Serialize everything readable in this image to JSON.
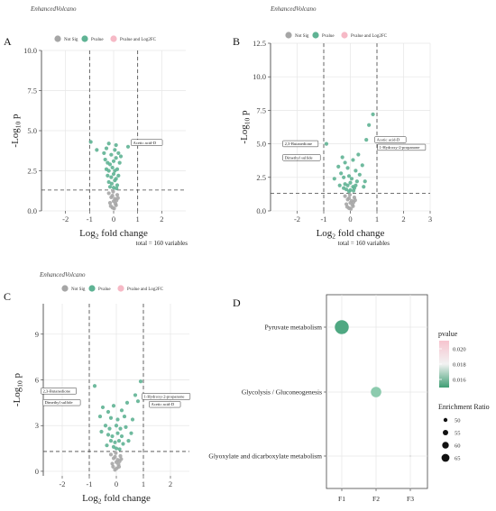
{
  "chart_data": [
    {
      "panel": "A",
      "type": "scatter",
      "title": "EnhancedVolcano",
      "xlabel": "Log2 fold change",
      "ylabel": "-Log10 p",
      "xlim": [
        -3,
        3
      ],
      "ylim": [
        0,
        10
      ],
      "xticks": [
        "-2",
        "-1",
        "0",
        "1",
        "2"
      ],
      "yticks": [
        "0.0",
        "2.5",
        "5.0",
        "7.5",
        "10.0"
      ],
      "thresholds": {
        "x": [
          -1,
          1
        ],
        "y": 1.3
      },
      "legend": [
        "Not Sig",
        "Pvalue",
        "Pvalue and Log2FC"
      ],
      "footer": "total = 160 variables",
      "annotations": [
        {
          "text": "Acetic acid-D",
          "x": 0.6,
          "y": 4.0
        }
      ],
      "series": [
        {
          "name": "Not Sig",
          "color": "#a6a6a6",
          "points": [
            [
              -0.05,
              0.2
            ],
            [
              0.1,
              0.35
            ],
            [
              -0.15,
              0.5
            ],
            [
              0.0,
              0.6
            ],
            [
              0.05,
              0.75
            ],
            [
              -0.1,
              0.85
            ],
            [
              0.15,
              1.0
            ],
            [
              -0.2,
              1.1
            ],
            [
              0.02,
              0.15
            ],
            [
              0.08,
              0.45
            ],
            [
              -0.05,
              0.95
            ],
            [
              0.12,
              0.65
            ],
            [
              -0.12,
              0.3
            ],
            [
              0.18,
              0.8
            ],
            [
              -0.02,
              1.2
            ]
          ]
        },
        {
          "name": "Pvalue",
          "color": "#5fb394",
          "points": [
            [
              -0.95,
              4.3
            ],
            [
              -0.7,
              3.8
            ],
            [
              -0.4,
              3.6
            ],
            [
              -0.3,
              3.9
            ],
            [
              -0.2,
              4.2
            ],
            [
              -0.1,
              3.5
            ],
            [
              0.05,
              3.8
            ],
            [
              0.1,
              4.1
            ],
            [
              0.2,
              3.6
            ],
            [
              -0.35,
              3.2
            ],
            [
              -0.25,
              3.0
            ],
            [
              -0.15,
              2.9
            ],
            [
              0.0,
              3.1
            ],
            [
              0.1,
              3.3
            ],
            [
              0.25,
              3.0
            ],
            [
              -0.3,
              2.6
            ],
            [
              -0.2,
              2.5
            ],
            [
              -0.05,
              2.7
            ],
            [
              0.05,
              2.5
            ],
            [
              0.15,
              2.6
            ],
            [
              -0.25,
              2.2
            ],
            [
              -0.1,
              2.1
            ],
            [
              0.0,
              2.3
            ],
            [
              0.1,
              2.0
            ],
            [
              0.2,
              2.2
            ],
            [
              -0.2,
              1.8
            ],
            [
              -0.08,
              1.7
            ],
            [
              0.05,
              1.9
            ],
            [
              0.15,
              1.6
            ],
            [
              -0.15,
              1.5
            ],
            [
              0.0,
              1.45
            ],
            [
              0.12,
              1.4
            ],
            [
              0.6,
              4.0
            ],
            [
              0.3,
              3.4
            ]
          ]
        }
      ]
    },
    {
      "panel": "B",
      "type": "scatter",
      "title": "EnhancedVolcano",
      "xlabel": "Log2 fold change",
      "ylabel": "-Log10 p",
      "xlim": [
        -3,
        3
      ],
      "ylim": [
        0,
        12.5
      ],
      "xticks": [
        "-2",
        "-1",
        "0",
        "1",
        "2",
        "3"
      ],
      "yticks": [
        "0.0",
        "2.5",
        "5.0",
        "7.5",
        "10.0",
        "12.5"
      ],
      "thresholds": {
        "x": [
          -1,
          1
        ],
        "y": 1.3
      },
      "legend": [
        "Not Sig",
        "Pvalue",
        "Pvalue and Log2FC"
      ],
      "footer": "total = 160 variables",
      "annotations": [
        {
          "text": "2,3-Butanedione",
          "x": -1.2,
          "y": 4.7
        },
        {
          "text": "Dimethyl sulfide",
          "x": -1.2,
          "y": 3.6
        },
        {
          "text": "Acetic acid-D",
          "x": 0.8,
          "y": 5.0
        },
        {
          "text": "1-Hydroxy-2-propanone",
          "x": 0.9,
          "y": 4.5
        }
      ],
      "series": [
        {
          "name": "Not Sig",
          "color": "#a6a6a6",
          "points": [
            [
              -0.05,
              0.2
            ],
            [
              0.1,
              0.35
            ],
            [
              -0.15,
              0.5
            ],
            [
              0.0,
              0.6
            ],
            [
              0.05,
              0.75
            ],
            [
              -0.1,
              0.85
            ],
            [
              0.15,
              1.0
            ],
            [
              -0.2,
              1.1
            ],
            [
              0.02,
              0.15
            ],
            [
              0.08,
              0.45
            ],
            [
              -0.05,
              0.95
            ],
            [
              0.12,
              0.65
            ],
            [
              -0.12,
              0.3
            ],
            [
              0.18,
              0.8
            ],
            [
              -0.02,
              1.2
            ]
          ]
        },
        {
          "name": "Pvalue",
          "color": "#5fb394",
          "points": [
            [
              0.85,
              7.2
            ],
            [
              0.7,
              6.4
            ],
            [
              -0.9,
              5.0
            ],
            [
              0.6,
              5.3
            ],
            [
              -0.3,
              4.0
            ],
            [
              -0.2,
              3.6
            ],
            [
              0.1,
              3.8
            ],
            [
              0.3,
              4.2
            ],
            [
              -0.1,
              3.2
            ],
            [
              0.2,
              3.0
            ],
            [
              -0.35,
              2.8
            ],
            [
              -0.25,
              2.5
            ],
            [
              -0.05,
              2.6
            ],
            [
              0.05,
              2.4
            ],
            [
              0.25,
              2.2
            ],
            [
              -0.2,
              2.0
            ],
            [
              -0.1,
              1.9
            ],
            [
              0.0,
              2.1
            ],
            [
              0.1,
              1.8
            ],
            [
              0.2,
              1.9
            ],
            [
              -0.15,
              1.6
            ],
            [
              0.0,
              1.55
            ],
            [
              0.12,
              1.5
            ],
            [
              -0.05,
              1.45
            ],
            [
              0.35,
              2.7
            ],
            [
              0.45,
              3.4
            ],
            [
              -0.45,
              3.3
            ],
            [
              -0.6,
              2.4
            ],
            [
              0.55,
              2.2
            ],
            [
              0.15,
              1.7
            ],
            [
              -0.25,
              1.7
            ],
            [
              -0.4,
              1.9
            ],
            [
              0.5,
              1.8
            ]
          ]
        }
      ]
    },
    {
      "panel": "C",
      "type": "scatter",
      "title": "EnhancedVolcano",
      "xlabel": "Log2 fold change",
      "ylabel": "-Log10 p",
      "xlim": [
        -2.7,
        2.7
      ],
      "ylim": [
        -0.3,
        11
      ],
      "xticks": [
        "-2",
        "-1",
        "0",
        "1",
        "2"
      ],
      "yticks": [
        "0",
        "3",
        "6",
        "9"
      ],
      "thresholds": {
        "x": [
          -1,
          1
        ],
        "y": 1.3
      },
      "legend": [
        "Not Sig",
        "Pvalue",
        "Pvalue and Log2FC"
      ],
      "annotations": [
        {
          "text": "2,3-Butanedione",
          "x": -1.4,
          "y": 5.0
        },
        {
          "text": "Dimethyl sulfide",
          "x": -1.4,
          "y": 4.3
        },
        {
          "text": "1-Hydroxy-2-propanone",
          "x": 0.9,
          "y": 4.7
        },
        {
          "text": "Acetic acid-D",
          "x": 1.1,
          "y": 4.3
        }
      ],
      "series": [
        {
          "name": "Not Sig",
          "color": "#a6a6a6",
          "points": [
            [
              -0.05,
              0.1
            ],
            [
              0.1,
              0.3
            ],
            [
              -0.15,
              0.5
            ],
            [
              0.0,
              0.6
            ],
            [
              0.05,
              0.75
            ],
            [
              -0.1,
              0.85
            ],
            [
              0.15,
              1.0
            ],
            [
              -0.2,
              1.1
            ],
            [
              0.02,
              0.2
            ],
            [
              0.08,
              0.45
            ],
            [
              -0.05,
              0.95
            ],
            [
              0.12,
              0.65
            ],
            [
              -0.12,
              0.3
            ],
            [
              0.18,
              0.8
            ],
            [
              -0.02,
              1.2
            ]
          ]
        },
        {
          "name": "Pvalue",
          "color": "#5fb394",
          "points": [
            [
              0.9,
              5.9
            ],
            [
              -0.8,
              5.6
            ],
            [
              0.7,
              5.0
            ],
            [
              -0.5,
              4.2
            ],
            [
              -0.3,
              3.9
            ],
            [
              -0.1,
              4.3
            ],
            [
              0.2,
              4.0
            ],
            [
              0.4,
              4.5
            ],
            [
              -0.2,
              3.5
            ],
            [
              0.05,
              3.4
            ],
            [
              0.3,
              3.6
            ],
            [
              -0.4,
              3.0
            ],
            [
              -0.25,
              2.8
            ],
            [
              0.0,
              3.0
            ],
            [
              0.15,
              2.8
            ],
            [
              0.35,
              2.9
            ],
            [
              -0.3,
              2.4
            ],
            [
              -0.15,
              2.3
            ],
            [
              0.05,
              2.5
            ],
            [
              0.2,
              2.3
            ],
            [
              -0.2,
              2.0
            ],
            [
              -0.05,
              1.9
            ],
            [
              0.1,
              2.0
            ],
            [
              0.25,
              1.8
            ],
            [
              -0.1,
              1.6
            ],
            [
              0.0,
              1.5
            ],
            [
              0.12,
              1.45
            ],
            [
              -0.55,
              2.6
            ],
            [
              0.55,
              2.5
            ],
            [
              0.6,
              3.4
            ],
            [
              -0.6,
              3.6
            ],
            [
              0.45,
              2.0
            ],
            [
              -0.35,
              1.7
            ],
            [
              0.8,
              4.6
            ]
          ]
        }
      ]
    },
    {
      "panel": "D",
      "type": "bubble",
      "categories_y": [
        "Pyruvate metabolism",
        "Glycolysis / Gluconeogenesis",
        "Glyoxylate and dicarboxylate metabolism"
      ],
      "categories_x": [
        "F1",
        "F2",
        "F3"
      ],
      "points": [
        {
          "y": "Pyruvate metabolism",
          "x": "F1",
          "pvalue": 0.0155,
          "enrichment": 66,
          "color": "#4fa882"
        },
        {
          "y": "Glycolysis / Gluconeogenesis",
          "x": "F2",
          "pvalue": 0.0165,
          "enrichment": 60,
          "color": "#8ccbae"
        },
        {
          "y": "Glyoxylate and dicarboxylate metabolism",
          "x": "F3",
          "pvalue": 0.018,
          "enrichment": 45,
          "color": "#dcdcdc"
        }
      ],
      "legend_pvalue": {
        "title": "pvalue",
        "labels": [
          "0.020",
          "0.018",
          "0.016"
        ]
      },
      "legend_size": {
        "title": "Enrichment Ratio",
        "labels": [
          "50",
          "55",
          "60",
          "65"
        ]
      }
    }
  ]
}
